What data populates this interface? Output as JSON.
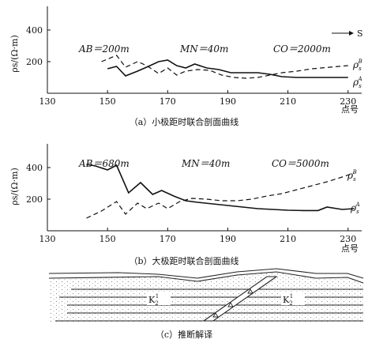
{
  "chart_data": [
    {
      "type": "line",
      "ylabel": "ρs/(Ω·m)",
      "xlabel": "点号",
      "x_ticks": [
        130,
        150,
        170,
        190,
        210,
        230
      ],
      "y_ticks": [
        200,
        400
      ],
      "xlim": [
        130,
        234
      ],
      "ylim": [
        0,
        550
      ],
      "direction_label": "S",
      "annotations": {
        "ab": "AB＝200m",
        "mn": "MN＝40m",
        "co": "CO＝2000m"
      },
      "caption": "（a）小极距时联合剖面曲线",
      "series": [
        {
          "name": "ρsA",
          "label_main": "ρ",
          "label_sub": "s",
          "label_sup": "A",
          "style": "solid",
          "x": [
            150,
            153,
            156,
            160,
            163,
            167,
            170,
            173,
            176,
            179,
            183,
            187,
            191,
            195,
            200,
            204,
            208,
            213,
            218,
            224,
            230
          ],
          "y": [
            155,
            170,
            110,
            140,
            165,
            200,
            210,
            175,
            160,
            185,
            160,
            150,
            130,
            130,
            130,
            120,
            105,
            100,
            100,
            100,
            100
          ]
        },
        {
          "name": "ρsB",
          "label_main": "ρ",
          "label_sub": "s",
          "label_sup": "B",
          "style": "dash",
          "x": [
            148,
            153,
            156,
            160,
            163,
            167,
            170,
            173,
            176,
            180,
            184,
            188,
            192,
            196,
            200,
            204,
            208,
            213,
            218,
            224,
            230
          ],
          "y": [
            200,
            240,
            165,
            200,
            175,
            125,
            160,
            115,
            140,
            150,
            145,
            115,
            100,
            95,
            100,
            115,
            130,
            140,
            155,
            165,
            175
          ]
        }
      ]
    },
    {
      "type": "line",
      "ylabel": "ρs/(Ω·m)",
      "xlabel": "点号",
      "x_ticks": [
        130,
        150,
        170,
        190,
        210,
        230
      ],
      "y_ticks": [
        200,
        400
      ],
      "xlim": [
        130,
        234
      ],
      "ylim": [
        0,
        550
      ],
      "annotations": {
        "ab": "AB＝680m",
        "mn": "MN＝40m",
        "co": "CO＝5000m"
      },
      "caption": "（b）大极距时联合剖面曲线",
      "series": [
        {
          "name": "ρsA",
          "label_main": "ρ",
          "label_sub": "s",
          "label_sup": "A",
          "style": "solid",
          "x": [
            143,
            146,
            150,
            153,
            157,
            161,
            165,
            168,
            172,
            176,
            180,
            185,
            190,
            195,
            200,
            205,
            210,
            215,
            220,
            223,
            228,
            232
          ],
          "y": [
            420,
            410,
            385,
            415,
            240,
            305,
            230,
            255,
            220,
            190,
            180,
            170,
            160,
            150,
            140,
            135,
            130,
            128,
            128,
            150,
            135,
            140
          ]
        },
        {
          "name": "ρsB",
          "label_main": "ρ",
          "label_sub": "s",
          "label_sup": "B",
          "style": "dash",
          "x": [
            143,
            148,
            153,
            156,
            160,
            163,
            167,
            170,
            174,
            178,
            183,
            188,
            193,
            198,
            203,
            208,
            213,
            218,
            223,
            228,
            232
          ],
          "y": [
            80,
            125,
            185,
            105,
            175,
            140,
            175,
            140,
            185,
            205,
            200,
            190,
            190,
            200,
            220,
            235,
            260,
            285,
            310,
            340,
            365
          ]
        }
      ]
    }
  ],
  "interpretation": {
    "caption": "（c）推断解译",
    "label_left": "K",
    "label_right": "K",
    "label_sub": "2",
    "label_sup": "1"
  }
}
